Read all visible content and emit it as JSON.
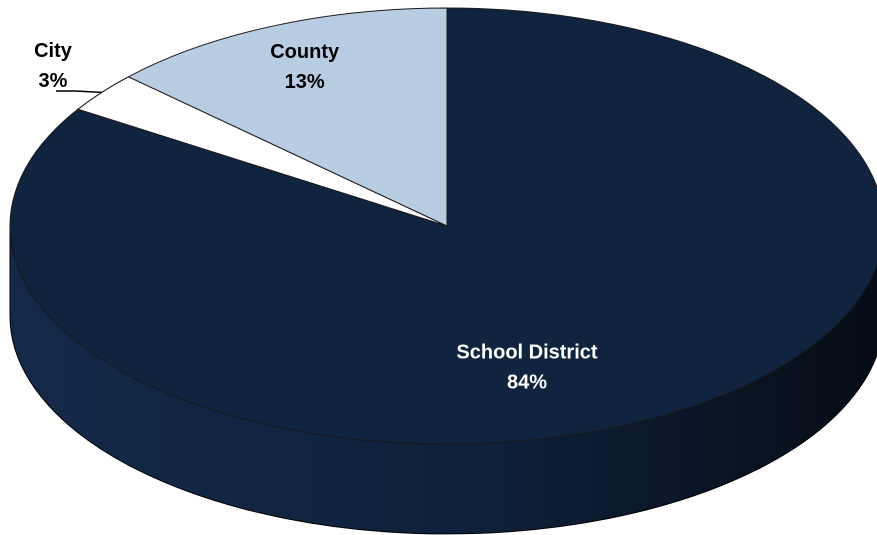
{
  "chart_data": {
    "type": "pie",
    "style": "3d",
    "slices": [
      {
        "label": "School District",
        "value": 84,
        "value_text": "84%",
        "color": "#10233f",
        "label_color": "#ffffff"
      },
      {
        "label": "City",
        "value": 3,
        "value_text": "3%",
        "color": "#ffffff",
        "label_color": "#000000"
      },
      {
        "label": "County",
        "value": 13,
        "value_text": "13%",
        "color": "#b8cde2",
        "label_color": "#000000"
      }
    ],
    "start_angle": "12 o'clock",
    "direction": "clockwise",
    "legend": "none"
  }
}
